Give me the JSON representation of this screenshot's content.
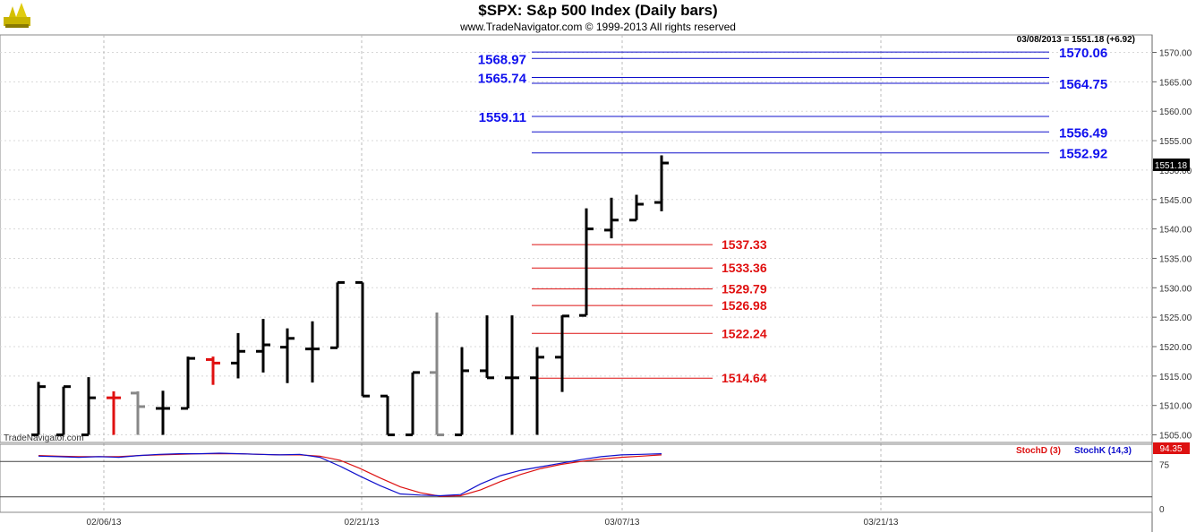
{
  "header": {
    "title": "$SPX:  S&p 500 Index  (Daily bars)",
    "copyright": "www.TradeNavigator.com © 1999-2013 All rights reserved",
    "last_quote": "03/08/2013 = 1551.18 (+6.92)",
    "last_price_tag": "1551.18",
    "watermark": "TradeNavigator.com"
  },
  "colors": {
    "bar_up": "#000000",
    "bar_gray": "#888888",
    "bar_red": "#e01010",
    "resistance": "#1010cc",
    "support": "#dd1111",
    "stoch_d": "#dd1111",
    "stoch_k": "#1010cc"
  },
  "chart_data": [
    {
      "type": "ohlc",
      "title": "$SPX:  S&p 500 Index  (Daily bars)",
      "ylim": [
        1505,
        1572
      ],
      "y_ticks": [
        "1505.00",
        "1510.00",
        "1515.00",
        "1520.00",
        "1525.00",
        "1530.00",
        "1535.00",
        "1540.00",
        "1545.00",
        "1550.00",
        "1555.00",
        "1560.00",
        "1565.00",
        "1570.00"
      ],
      "x_ticks": [
        "02/06/13",
        "02/21/13",
        "03/07/13",
        "03/21/13"
      ],
      "grid": true,
      "bars": [
        {
          "date": "01/31/13",
          "open": 1505.0,
          "high": 1514.0,
          "low": 1505.0,
          "close": 1513.2,
          "color": "black"
        },
        {
          "date": "02/01/13",
          "open": 1505.0,
          "high": 1513.2,
          "low": 1505.0,
          "close": 1513.2,
          "color": "black"
        },
        {
          "date": "02/04/13",
          "open": 1505.0,
          "high": 1514.8,
          "low": 1505.0,
          "close": 1511.3,
          "color": "black"
        },
        {
          "date": "02/05/13",
          "open": 1511.3,
          "high": 1512.4,
          "low": 1505.0,
          "close": 1511.3,
          "color": "red"
        },
        {
          "date": "02/06/13",
          "open": 1512.1,
          "high": 1512.4,
          "low": 1505.0,
          "close": 1509.8,
          "color": "gray"
        },
        {
          "date": "02/07/13",
          "open": 1509.5,
          "high": 1512.5,
          "low": 1505.0,
          "close": 1509.5,
          "color": "black"
        },
        {
          "date": "02/08/13",
          "open": 1509.5,
          "high": 1518.3,
          "low": 1509.5,
          "close": 1518.0,
          "color": "black"
        },
        {
          "date": "02/11/13",
          "open": 1517.8,
          "high": 1518.3,
          "low": 1513.5,
          "close": 1517.2,
          "color": "red"
        },
        {
          "date": "02/12/13",
          "open": 1517.2,
          "high": 1522.3,
          "low": 1514.6,
          "close": 1519.2,
          "color": "black"
        },
        {
          "date": "02/13/13",
          "open": 1519.2,
          "high": 1524.7,
          "low": 1515.6,
          "close": 1520.3,
          "color": "black"
        },
        {
          "date": "02/14/13",
          "open": 1519.9,
          "high": 1523.1,
          "low": 1513.8,
          "close": 1521.4,
          "color": "black"
        },
        {
          "date": "02/15/13",
          "open": 1519.6,
          "high": 1524.3,
          "low": 1513.9,
          "close": 1519.6,
          "color": "black"
        },
        {
          "date": "02/19/13",
          "open": 1519.8,
          "high": 1530.9,
          "low": 1519.8,
          "close": 1530.9,
          "color": "black"
        },
        {
          "date": "02/20/13",
          "open": 1530.9,
          "high": 1530.9,
          "low": 1511.6,
          "close": 1511.6,
          "color": "black"
        },
        {
          "date": "02/21/13",
          "open": 1511.6,
          "high": 1511.6,
          "low": 1505.0,
          "close": 1505.0,
          "color": "black"
        },
        {
          "date": "02/22/13",
          "open": 1505.0,
          "high": 1515.6,
          "low": 1505.0,
          "close": 1515.6,
          "color": "black"
        },
        {
          "date": "02/25/13",
          "open": 1515.6,
          "high": 1525.8,
          "low": 1505.0,
          "close": 1505.0,
          "color": "gray"
        },
        {
          "date": "02/26/13",
          "open": 1505.0,
          "high": 1519.9,
          "low": 1505.0,
          "close": 1515.9,
          "color": "black"
        },
        {
          "date": "02/27/13",
          "open": 1515.9,
          "high": 1525.3,
          "low": 1514.7,
          "close": 1514.7,
          "color": "black"
        },
        {
          "date": "02/28/13",
          "open": 1514.7,
          "high": 1525.3,
          "low": 1505.0,
          "close": 1514.7,
          "color": "black"
        },
        {
          "date": "03/01/13",
          "open": 1514.7,
          "high": 1519.9,
          "low": 1505.0,
          "close": 1518.2,
          "color": "black"
        },
        {
          "date": "03/04/13",
          "open": 1518.2,
          "high": 1525.3,
          "low": 1512.3,
          "close": 1525.2,
          "color": "black"
        },
        {
          "date": "03/05/13",
          "open": 1525.3,
          "high": 1543.5,
          "low": 1525.3,
          "close": 1540.0,
          "color": "black"
        },
        {
          "date": "03/06/13",
          "open": 1539.8,
          "high": 1545.3,
          "low": 1538.4,
          "close": 1541.5,
          "color": "black"
        },
        {
          "date": "03/07/13",
          "open": 1541.5,
          "high": 1545.8,
          "low": 1541.5,
          "close": 1544.2,
          "color": "black"
        },
        {
          "date": "03/08/13",
          "open": 1544.5,
          "high": 1552.5,
          "low": 1543.0,
          "close": 1551.2,
          "color": "black"
        }
      ],
      "resistance_levels": [
        {
          "value": 1570.06,
          "label": "1570.06",
          "side": "right"
        },
        {
          "value": 1568.97,
          "label": "1568.97",
          "side": "left"
        },
        {
          "value": 1565.74,
          "label": "1565.74",
          "side": "left"
        },
        {
          "value": 1564.75,
          "label": "1564.75",
          "side": "right"
        },
        {
          "value": 1559.11,
          "label": "1559.11",
          "side": "left"
        },
        {
          "value": 1556.49,
          "label": "1556.49",
          "side": "right"
        },
        {
          "value": 1552.92,
          "label": "1552.92",
          "side": "right"
        }
      ],
      "support_levels": [
        {
          "value": 1537.33,
          "label": "1537.33"
        },
        {
          "value": 1533.36,
          "label": "1533.36"
        },
        {
          "value": 1529.79,
          "label": "1529.79"
        },
        {
          "value": 1526.98,
          "label": "1526.98"
        },
        {
          "value": 1522.24,
          "label": "1522.24"
        },
        {
          "value": 1514.64,
          "label": "1514.64"
        }
      ]
    },
    {
      "type": "line",
      "ylim": [
        0,
        100
      ],
      "y_ticks": [
        "75",
        "0"
      ],
      "reference_lines": [
        80,
        20
      ],
      "last_value_tag": "94.35",
      "series": [
        {
          "name": "StochD (3)",
          "color": "#dd1111",
          "values": [
            90,
            89,
            88,
            88,
            88,
            90,
            91,
            92,
            93,
            93,
            93,
            92,
            91,
            91,
            89,
            82,
            68,
            52,
            37,
            27,
            21,
            22,
            32,
            46,
            58,
            68,
            75,
            80,
            84,
            87,
            89,
            91
          ]
        },
        {
          "name": "StochK (14,3)",
          "color": "#1010cc",
          "values": [
            89,
            88,
            87,
            88,
            87,
            90,
            92,
            93,
            93,
            94,
            93,
            92,
            91,
            92,
            87,
            72,
            55,
            39,
            25,
            23,
            22,
            24,
            42,
            56,
            65,
            71,
            77,
            83,
            88,
            91,
            92,
            93
          ]
        }
      ]
    }
  ]
}
